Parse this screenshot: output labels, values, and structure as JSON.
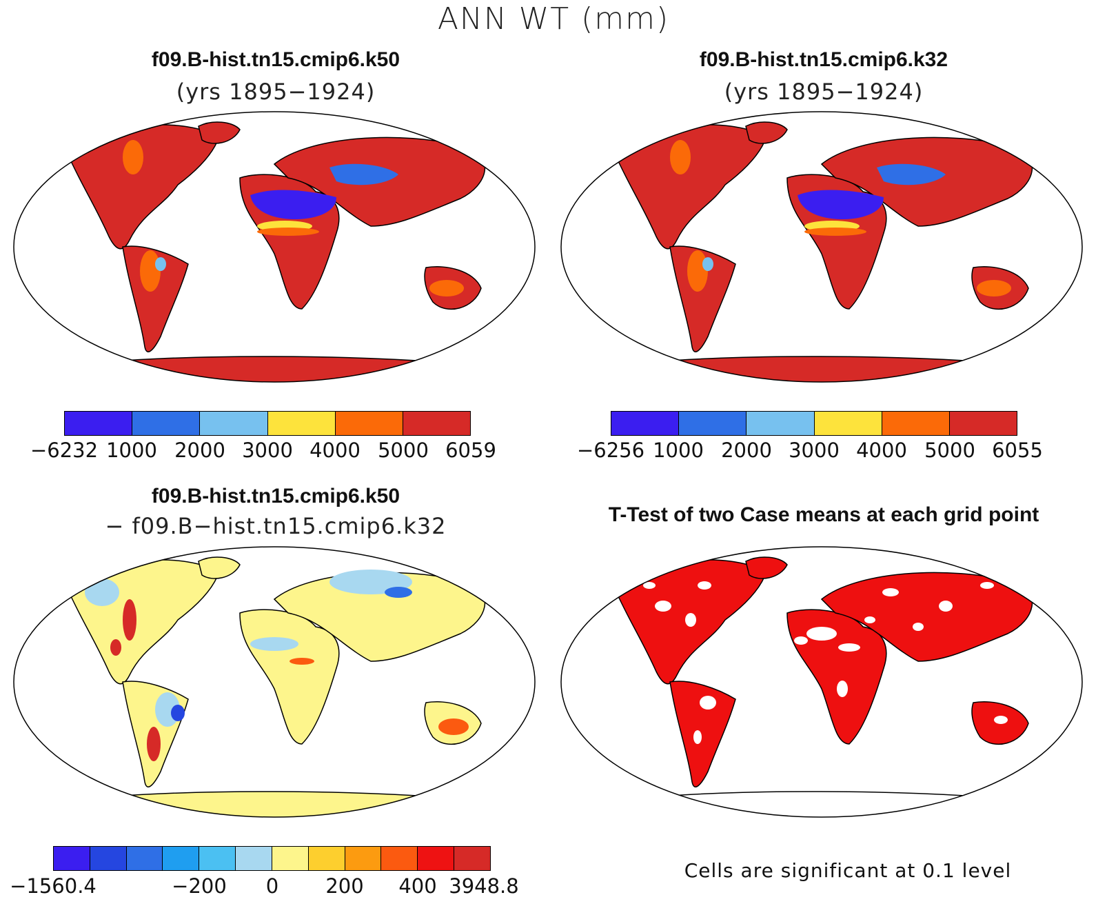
{
  "main_title": "ANN WT (mm)",
  "panels": {
    "top_left": {
      "title": "f09.B-hist.tn15.cmip6.k50",
      "subtitle": "(yrs 1895−1924)",
      "colorbar": {
        "colors": [
          "#3b1ef0",
          "#2f6fe6",
          "#77c1ef",
          "#fde33c",
          "#fb6a08",
          "#d62a27"
        ],
        "labels": [
          "−6232",
          "1000",
          "2000",
          "3000",
          "4000",
          "5000",
          "6059"
        ]
      }
    },
    "top_right": {
      "title": "f09.B-hist.tn15.cmip6.k32",
      "subtitle": "(yrs 1895−1924)",
      "colorbar": {
        "colors": [
          "#3b1ef0",
          "#2f6fe6",
          "#77c1ef",
          "#fde33c",
          "#fb6a08",
          "#d62a27"
        ],
        "labels": [
          "−6256",
          "1000",
          "2000",
          "3000",
          "4000",
          "5000",
          "6055"
        ]
      }
    },
    "bottom_left": {
      "title": "f09.B-hist.tn15.cmip6.k50",
      "subtitle": "− f09.B−hist.tn15.cmip6.k32",
      "colorbar": {
        "colors": [
          "#3b1ef0",
          "#2546e0",
          "#2f6fe6",
          "#1f9ef0",
          "#4bc0f2",
          "#a8d8f0",
          "#fdf58c",
          "#fdcf2e",
          "#fc9b10",
          "#fb5a10",
          "#ee1212",
          "#d62a27"
        ],
        "labels": [
          "−1560.4",
          "−200",
          "0",
          "200",
          "400",
          "3948.8"
        ]
      }
    },
    "bottom_right": {
      "title": "T-Test of two Case means at each grid point",
      "note": "Cells are significant at 0.1 level",
      "significant_color": "#ee1010"
    }
  }
}
